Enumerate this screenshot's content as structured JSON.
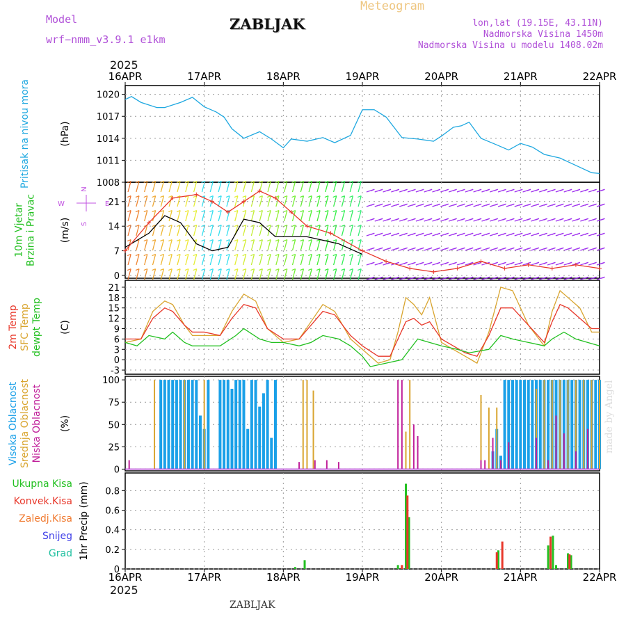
{
  "header": {
    "model_label": "Model",
    "model_name": "wrf−nmm_v3.9.1 e1km",
    "station": "ZABLJAK",
    "product": "Meteogram",
    "coords": "lon,lat (19.15E, 43.11N)",
    "elevation": "Nadmorska Visina 1450m",
    "model_elevation": "Nadmorska Visina u modelu 1408.02m",
    "year_top": "2025",
    "year_bottom": "2025",
    "footer_station": "ZABLJAK",
    "signature": "made by Angel"
  },
  "colors": {
    "pressure": "#1fa8e0",
    "temp2m": "#e8372a",
    "sfc": "#d9a530",
    "dew": "#22c020",
    "high_cloud": "#1aa0e8",
    "mid_cloud": "#d9a530",
    "low_cloud": "#c0209a",
    "precip_total": "#22c020",
    "precip_conv": "#e8372a",
    "precip_frozen": "#f07a30",
    "snow": "#4040e8",
    "hail": "#20c0a0",
    "wind_label": "#22c020",
    "compass": "#c050e0"
  },
  "chart_data": [
    {
      "type": "line",
      "name": "pressure",
      "label_lines": [
        "Pritisak na nivou mora"
      ],
      "unit": "(hPa)",
      "x_ticks": [
        "16APR",
        "17APR",
        "18APR",
        "19APR",
        "20APR",
        "21APR",
        "22APR"
      ],
      "yticks": [
        1008,
        1011,
        1014,
        1017,
        1020
      ],
      "ylim": [
        1008,
        1021.2
      ],
      "grid": true,
      "series": [
        {
          "color_key": "pressure",
          "x": [
            0,
            0.08,
            0.2,
            0.4,
            0.5,
            0.7,
            0.85,
            1.0,
            1.15,
            1.25,
            1.35,
            1.5,
            1.7,
            1.85,
            2.0,
            2.1,
            2.3,
            2.5,
            2.65,
            2.85,
            3.0,
            3.15,
            3.3,
            3.5,
            3.7,
            3.9,
            4.0,
            4.15,
            4.25,
            4.35,
            4.5,
            4.7,
            4.85,
            5.0,
            5.15,
            5.3,
            5.5,
            5.7,
            5.9,
            6.0
          ],
          "y": [
            1019.3,
            1019.7,
            1018.9,
            1018.2,
            1018.2,
            1018.9,
            1019.6,
            1018.3,
            1017.6,
            1016.9,
            1015.3,
            1014.0,
            1014.9,
            1013.9,
            1012.7,
            1013.9,
            1013.6,
            1014.1,
            1013.4,
            1014.4,
            1017.9,
            1017.9,
            1016.9,
            1014.1,
            1013.9,
            1013.6,
            1014.3,
            1015.5,
            1015.7,
            1016.2,
            1014.0,
            1013.1,
            1012.4,
            1013.3,
            1012.8,
            1011.8,
            1011.3,
            1010.3,
            1009.3,
            1009.2
          ]
        }
      ]
    },
    {
      "type": "line",
      "name": "wind",
      "label_lines": [
        "10m Vjetar",
        "Brzina i Pravac"
      ],
      "unit": "(m/s)",
      "yticks": [
        0,
        7,
        14,
        21
      ],
      "ylim": [
        -0.8,
        26.5
      ],
      "grid": true,
      "compass": {
        "n": "N",
        "w": "W",
        "e": "E",
        "s": "S"
      },
      "series": [
        {
          "color_key": "black",
          "x": [
            0,
            0.3,
            0.5,
            0.7,
            0.9,
            1.1,
            1.3,
            1.5,
            1.7,
            1.9,
            2.1,
            2.3,
            2.5,
            2.7,
            3.0
          ],
          "y": [
            8,
            12,
            17,
            15,
            9,
            7,
            8,
            16,
            15,
            11,
            11,
            11,
            10,
            9,
            6
          ]
        },
        {
          "color_key": "temp2m",
          "x": [
            0,
            0.3,
            0.6,
            0.9,
            1.1,
            1.3,
            1.5,
            1.7,
            1.9,
            2.1,
            2.3,
            2.6,
            3.0,
            3.3,
            3.6,
            3.9,
            4.2,
            4.5,
            4.8,
            5.1,
            5.4,
            5.7,
            6.0
          ],
          "y": [
            7,
            15,
            22,
            23,
            21,
            18,
            21,
            24,
            22,
            18,
            14,
            12,
            7,
            4,
            2,
            1,
            2,
            4,
            2,
            3,
            2,
            3,
            2
          ]
        }
      ]
    },
    {
      "type": "line",
      "name": "temperature",
      "label_lines": [
        "2m Temp",
        "SFC Temp",
        "dewpt Temp"
      ],
      "unit": "(C)",
      "yticks": [
        -3,
        0,
        3,
        6,
        9,
        12,
        15,
        18,
        21
      ],
      "ylim": [
        -4.2,
        23
      ],
      "grid": true,
      "series": [
        {
          "color_key": "sfc",
          "x": [
            0,
            0.2,
            0.35,
            0.5,
            0.6,
            0.75,
            0.85,
            1.0,
            1.2,
            1.35,
            1.5,
            1.65,
            1.8,
            2.0,
            2.2,
            2.35,
            2.5,
            2.65,
            2.85,
            3.0,
            3.2,
            3.35,
            3.45,
            3.55,
            3.65,
            3.75,
            3.85,
            4.0,
            4.15,
            4.3,
            4.45,
            4.6,
            4.75,
            4.9,
            5.1,
            5.3,
            5.4,
            5.5,
            5.6,
            5.75,
            5.9,
            6.0
          ],
          "y": [
            5,
            6,
            14,
            17,
            16,
            10,
            7,
            7,
            7,
            14,
            19,
            17,
            9,
            5,
            6,
            11,
            16,
            14,
            6,
            3,
            -1,
            0,
            8,
            18,
            16,
            13,
            18,
            5,
            3,
            1,
            -1,
            8,
            21,
            20,
            10,
            4,
            14,
            20,
            18,
            15,
            8,
            8
          ]
        },
        {
          "color_key": "temp2m",
          "x": [
            0,
            0.2,
            0.35,
            0.5,
            0.6,
            0.75,
            0.85,
            1.0,
            1.2,
            1.35,
            1.5,
            1.65,
            1.8,
            2.0,
            2.2,
            2.35,
            2.5,
            2.65,
            2.85,
            3.0,
            3.2,
            3.35,
            3.45,
            3.55,
            3.65,
            3.75,
            3.85,
            4.0,
            4.15,
            4.3,
            4.45,
            4.6,
            4.75,
            4.9,
            5.1,
            5.3,
            5.4,
            5.5,
            5.6,
            5.75,
            5.9,
            6.0
          ],
          "y": [
            6,
            6,
            12,
            15,
            14,
            10,
            8,
            8,
            7,
            12,
            16,
            15,
            9,
            6,
            6,
            10,
            14,
            13,
            7,
            4,
            1,
            1,
            6,
            11,
            12,
            10,
            11,
            6,
            4,
            2,
            1,
            7,
            15,
            15,
            10,
            5,
            11,
            16,
            15,
            12,
            9,
            9
          ]
        },
        {
          "color_key": "dew",
          "x": [
            0,
            0.15,
            0.3,
            0.5,
            0.6,
            0.75,
            0.85,
            1.0,
            1.2,
            1.4,
            1.5,
            1.7,
            1.85,
            2.0,
            2.2,
            2.35,
            2.5,
            2.7,
            2.85,
            3.0,
            3.1,
            3.3,
            3.5,
            3.7,
            3.85,
            4.0,
            4.2,
            4.35,
            4.6,
            4.75,
            4.9,
            5.1,
            5.3,
            5.4,
            5.55,
            5.7,
            5.85,
            6.0
          ],
          "y": [
            5,
            4,
            7,
            6,
            8,
            5,
            4,
            4,
            4,
            7,
            9,
            6,
            5,
            5,
            4,
            5,
            7,
            6,
            4,
            1,
            -2,
            -1,
            0,
            6,
            5,
            4,
            3,
            2,
            3,
            7,
            6,
            5,
            4,
            6,
            8,
            6,
            5,
            4
          ]
        }
      ]
    },
    {
      "type": "bar",
      "name": "clouds",
      "label_lines": [
        "Visoka Oblacnost",
        "Srednja Oblacnost",
        "Niska Oblacnost"
      ],
      "unit": "(%)",
      "yticks": [
        0,
        25,
        50,
        75,
        100
      ],
      "ylim": [
        -2,
        104
      ],
      "grid": true,
      "series": [
        {
          "color_key": "high_cloud",
          "x": [
            0.45,
            0.5,
            0.55,
            0.6,
            0.65,
            0.7,
            0.75,
            0.8,
            0.85,
            0.9,
            0.95,
            1.0,
            1.05,
            1.2,
            1.25,
            1.3,
            1.35,
            1.4,
            1.45,
            1.5,
            1.55,
            1.6,
            1.65,
            1.7,
            1.75,
            1.8,
            1.85,
            1.9,
            4.65,
            4.7,
            4.75,
            4.8,
            4.85,
            4.9,
            4.95,
            5.0,
            5.05,
            5.1,
            5.15,
            5.2,
            5.25,
            5.3,
            5.35,
            5.4,
            5.45,
            5.5,
            5.55,
            5.6,
            5.65,
            5.7,
            5.75,
            5.8,
            5.85,
            5.9,
            5.95,
            6.0
          ],
          "values": [
            100,
            100,
            100,
            100,
            100,
            100,
            100,
            100,
            100,
            100,
            60,
            45,
            100,
            100,
            100,
            100,
            90,
            100,
            100,
            100,
            45,
            100,
            100,
            70,
            85,
            100,
            35,
            100,
            20,
            45,
            15,
            100,
            100,
            100,
            100,
            100,
            100,
            100,
            100,
            100,
            100,
            100,
            100,
            100,
            100,
            100,
            100,
            100,
            100,
            100,
            100,
            100,
            100,
            100,
            100,
            100
          ]
        },
        {
          "color_key": "mid_cloud",
          "x": [
            0.37,
            0.75,
            1.0,
            2.25,
            2.3,
            2.38,
            3.55,
            3.6,
            4.5,
            4.6,
            4.7,
            5.2,
            5.3,
            5.4,
            5.5,
            5.6,
            5.7,
            5.8,
            5.9,
            6.0
          ],
          "values": [
            100,
            100,
            100,
            100,
            100,
            88,
            42,
            100,
            83,
            69,
            69,
            90,
            100,
            100,
            100,
            100,
            100,
            100,
            100,
            100
          ]
        },
        {
          "color_key": "low_cloud",
          "x": [
            0.05,
            2.2,
            2.4,
            2.55,
            2.7,
            3.45,
            3.5,
            3.65,
            3.7,
            4.5,
            4.55,
            4.65,
            4.75,
            4.85,
            5.2,
            5.35,
            5.45,
            5.55,
            5.7,
            5.85
          ],
          "values": [
            10,
            8,
            10,
            10,
            8,
            100,
            100,
            50,
            37,
            10,
            10,
            35,
            10,
            30,
            35,
            10,
            60,
            40,
            20,
            45
          ]
        }
      ]
    },
    {
      "type": "bar",
      "name": "precipitation",
      "label_lines": [
        "Ukupna  Kisa",
        "Konvek.Kisa",
        "Zaledj.Kisa",
        "Snijeg",
        "Grad"
      ],
      "unit": "1hr Precip (mm)",
      "yticks": [
        0,
        0.2,
        0.4,
        0.6,
        0.8
      ],
      "yticklabels": [
        "0",
        "0.2",
        "0.4",
        "0.6",
        "0.8"
      ],
      "ylim": [
        0,
        0.98
      ],
      "grid": true,
      "x_ticks": [
        "16APR",
        "17APR",
        "18APR",
        "19APR",
        "20APR",
        "21APR",
        "22APR"
      ],
      "series": [
        {
          "color_key": "precip_total",
          "x": [
            2.15,
            2.27,
            3.45,
            3.55,
            3.59,
            4.72,
            5.35,
            5.41,
            5.45,
            5.6,
            5.64
          ],
          "values": [
            0.02,
            0.09,
            0.04,
            0.87,
            0.53,
            0.19,
            0.24,
            0.34,
            0.04,
            0.16,
            0.14
          ]
        },
        {
          "color_key": "precip_conv",
          "x": [
            3.5,
            3.57,
            4.7,
            4.77,
            5.38,
            5.62
          ],
          "values": [
            0.04,
            0.75,
            0.17,
            0.28,
            0.33,
            0.15
          ]
        }
      ]
    }
  ]
}
